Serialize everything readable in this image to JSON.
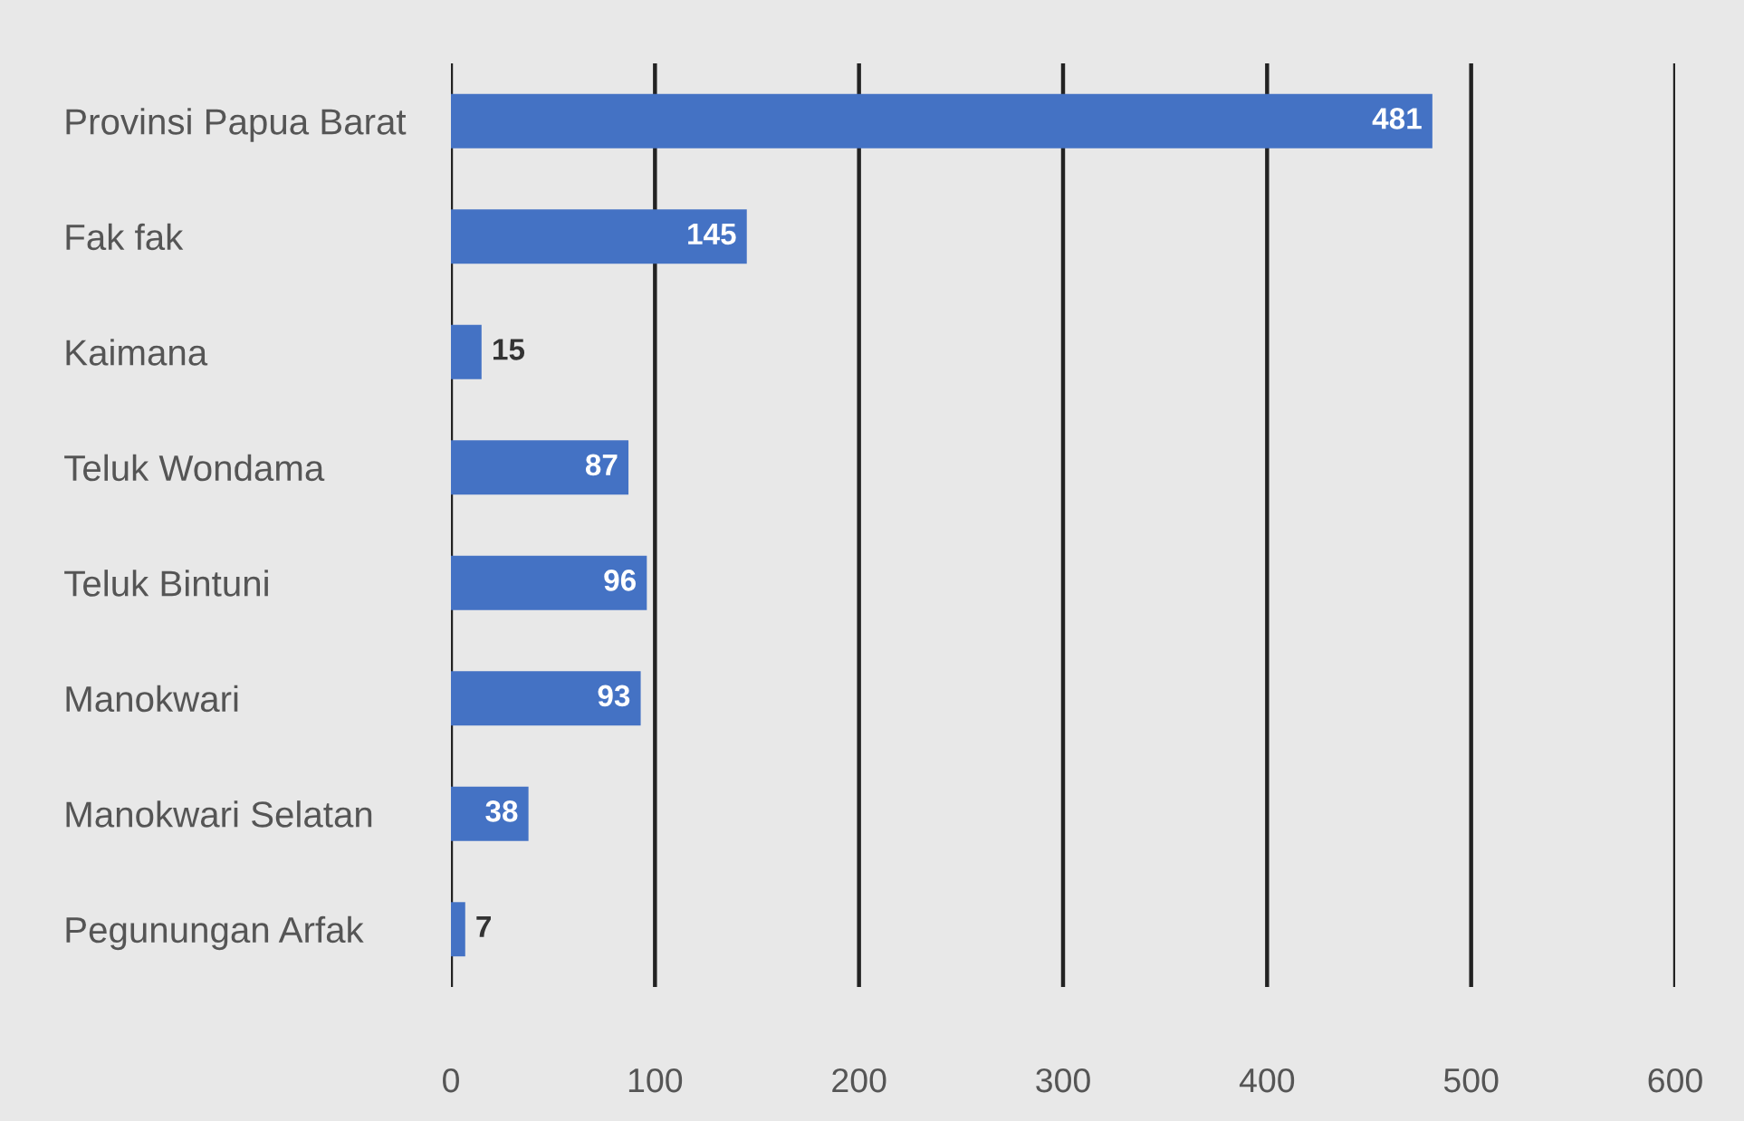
{
  "chart_data": {
    "type": "bar",
    "orientation": "horizontal",
    "categories": [
      "Provinsi Papua Barat",
      "Fak fak",
      "Kaimana",
      "Teluk Wondama",
      "Teluk Bintuni",
      "Manokwari",
      "Manokwari Selatan",
      "Pegunungan Arfak"
    ],
    "values": [
      481,
      145,
      15,
      87,
      96,
      93,
      38,
      7
    ],
    "color": "#4472c4",
    "xlim": [
      0,
      600
    ],
    "xticks": [
      0,
      100,
      200,
      300,
      400,
      500,
      600
    ],
    "grid": "x",
    "data_labels": true
  }
}
